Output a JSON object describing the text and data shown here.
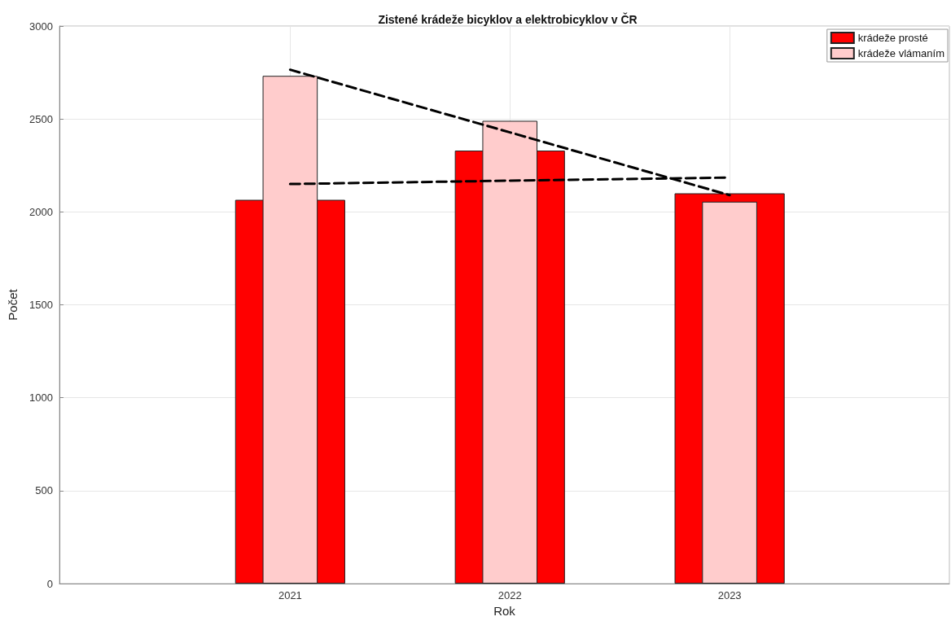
{
  "chart_data": {
    "type": "bar",
    "title": "Zistené krádeže bicyklov a elektrobicyklov v ČR",
    "xlabel": "Rok",
    "ylabel": "Počet",
    "x": [
      2021,
      2022,
      2023
    ],
    "series": [
      {
        "name": "krádeže prosté",
        "color": "#ff0000",
        "values": [
          2065,
          2330,
          2100
        ]
      },
      {
        "name": "krádeže vlámaním",
        "color": "#ffcccc",
        "values": [
          2732,
          2490,
          2055
        ]
      },
      {
        "type": "line",
        "color": "#000000",
        "values": [
          2765,
          2428,
          2090
        ],
        "line_style": "dashed",
        "marker": "none"
      },
      {
        "type": "line",
        "color": "#000000",
        "values": [
          2150,
          2168,
          2185
        ],
        "line_style": "dashed",
        "marker": "none"
      }
    ],
    "xlim": [
      2019.95,
      2024
    ],
    "xticks": [
      2021,
      2022,
      2023
    ],
    "ylim": [
      0,
      3000
    ],
    "yticks": [
      0,
      500,
      1000,
      1500,
      2000,
      2500,
      3000
    ],
    "grid": true,
    "legend": "top right"
  }
}
